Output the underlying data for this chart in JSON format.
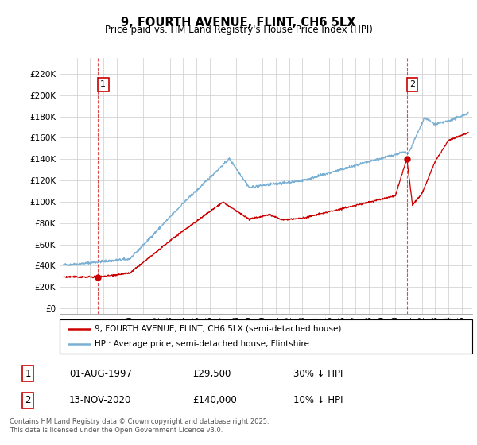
{
  "title": "9, FOURTH AVENUE, FLINT, CH6 5LX",
  "subtitle": "Price paid vs. HM Land Registry's House Price Index (HPI)",
  "ylabel_ticks": [
    0,
    20000,
    40000,
    60000,
    80000,
    100000,
    120000,
    140000,
    160000,
    180000,
    200000,
    220000
  ],
  "ylabel_labels": [
    "£0",
    "£20K",
    "£40K",
    "£60K",
    "£80K",
    "£100K",
    "£120K",
    "£140K",
    "£160K",
    "£180K",
    "£200K",
    "£220K"
  ],
  "xlim": [
    1994.7,
    2025.8
  ],
  "ylim": [
    -5000,
    235000
  ],
  "red_color": "#cc0000",
  "blue_color": "#7ab0d4",
  "point1_x": 1997.58,
  "point1_y": 29500,
  "point2_x": 2020.87,
  "point2_y": 140000,
  "legend_entry1": "9, FOURTH AVENUE, FLINT, CH6 5LX (semi-detached house)",
  "legend_entry2": "HPI: Average price, semi-detached house, Flintshire",
  "ann1_date": "01-AUG-1997",
  "ann1_price": "£29,500",
  "ann1_note": "30% ↓ HPI",
  "ann2_date": "13-NOV-2020",
  "ann2_price": "£140,000",
  "ann2_note": "10% ↓ HPI",
  "footnote": "Contains HM Land Registry data © Crown copyright and database right 2025.\nThis data is licensed under the Open Government Licence v3.0.",
  "xticks": [
    1995,
    1996,
    1997,
    1998,
    1999,
    2000,
    2001,
    2002,
    2003,
    2004,
    2005,
    2006,
    2007,
    2008,
    2009,
    2010,
    2011,
    2012,
    2013,
    2014,
    2015,
    2016,
    2017,
    2018,
    2019,
    2020,
    2021,
    2022,
    2023,
    2024,
    2025
  ]
}
